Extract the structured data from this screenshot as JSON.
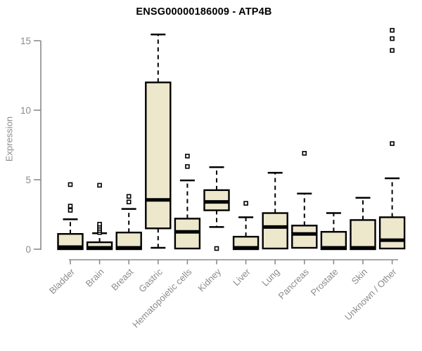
{
  "chart_data": {
    "type": "boxplot",
    "title": "ENSG00000186009 - ATP4B",
    "ylabel": "Expression",
    "xlabel": "",
    "yticks": [
      0,
      5,
      10,
      15
    ],
    "ylim": [
      0,
      15.8
    ],
    "grid": false,
    "legend": null,
    "x_tick_rotation": -45,
    "colors": {
      "box_fill": "#ede7cc",
      "box_stroke": "#000000",
      "axis": "#8b8b8b",
      "tick_label": "#8b8b8b",
      "title": "#000000",
      "outlier_fill": "#ffffff"
    },
    "categories": [
      {
        "name": "Bladder",
        "low": 0,
        "q1": 0,
        "median": 0.15,
        "q3": 1.1,
        "high": 2.15,
        "outliers": [
          2.8,
          3.1,
          4.65
        ]
      },
      {
        "name": "Brain",
        "low": 0,
        "q1": 0,
        "median": 0.1,
        "q3": 0.5,
        "high": 1.15,
        "outliers": [
          1.2,
          1.35,
          1.5,
          1.65,
          1.8,
          4.6
        ]
      },
      {
        "name": "Breast",
        "low": 0,
        "q1": 0,
        "median": 0.1,
        "q3": 1.2,
        "high": 2.9,
        "outliers": [
          3.4,
          3.8
        ]
      },
      {
        "name": "Gastric",
        "low": 0.1,
        "q1": 1.5,
        "median": 3.55,
        "q3": 12.0,
        "high": 15.45,
        "outliers": []
      },
      {
        "name": "Hematopoietic cells",
        "low": 0.05,
        "q1": 0.05,
        "median": 1.25,
        "q3": 2.2,
        "high": 4.95,
        "outliers": [
          5.95,
          6.7
        ]
      },
      {
        "name": "Kidney",
        "low": 1.6,
        "q1": 2.8,
        "median": 3.4,
        "q3": 4.25,
        "high": 5.9,
        "outliers": [
          0.05
        ]
      },
      {
        "name": "Liver",
        "low": 0,
        "q1": 0,
        "median": 0.1,
        "q3": 0.9,
        "high": 2.3,
        "outliers": [
          3.3
        ]
      },
      {
        "name": "Lung",
        "low": 0.05,
        "q1": 0.05,
        "median": 1.6,
        "q3": 2.6,
        "high": 5.5,
        "outliers": []
      },
      {
        "name": "Pancreas",
        "low": 0.1,
        "q1": 0.1,
        "median": 1.1,
        "q3": 1.7,
        "high": 4.0,
        "outliers": [
          6.9
        ]
      },
      {
        "name": "Prostate",
        "low": 0,
        "q1": 0,
        "median": 0.1,
        "q3": 1.25,
        "high": 2.6,
        "outliers": []
      },
      {
        "name": "Skin",
        "low": 0,
        "q1": 0,
        "median": 0.1,
        "q3": 2.1,
        "high": 3.7,
        "outliers": []
      },
      {
        "name": "Unknown / Other",
        "low": 0.05,
        "q1": 0.05,
        "median": 0.65,
        "q3": 2.3,
        "high": 5.1,
        "outliers": [
          7.6,
          14.3,
          15.15,
          15.75
        ]
      }
    ]
  }
}
